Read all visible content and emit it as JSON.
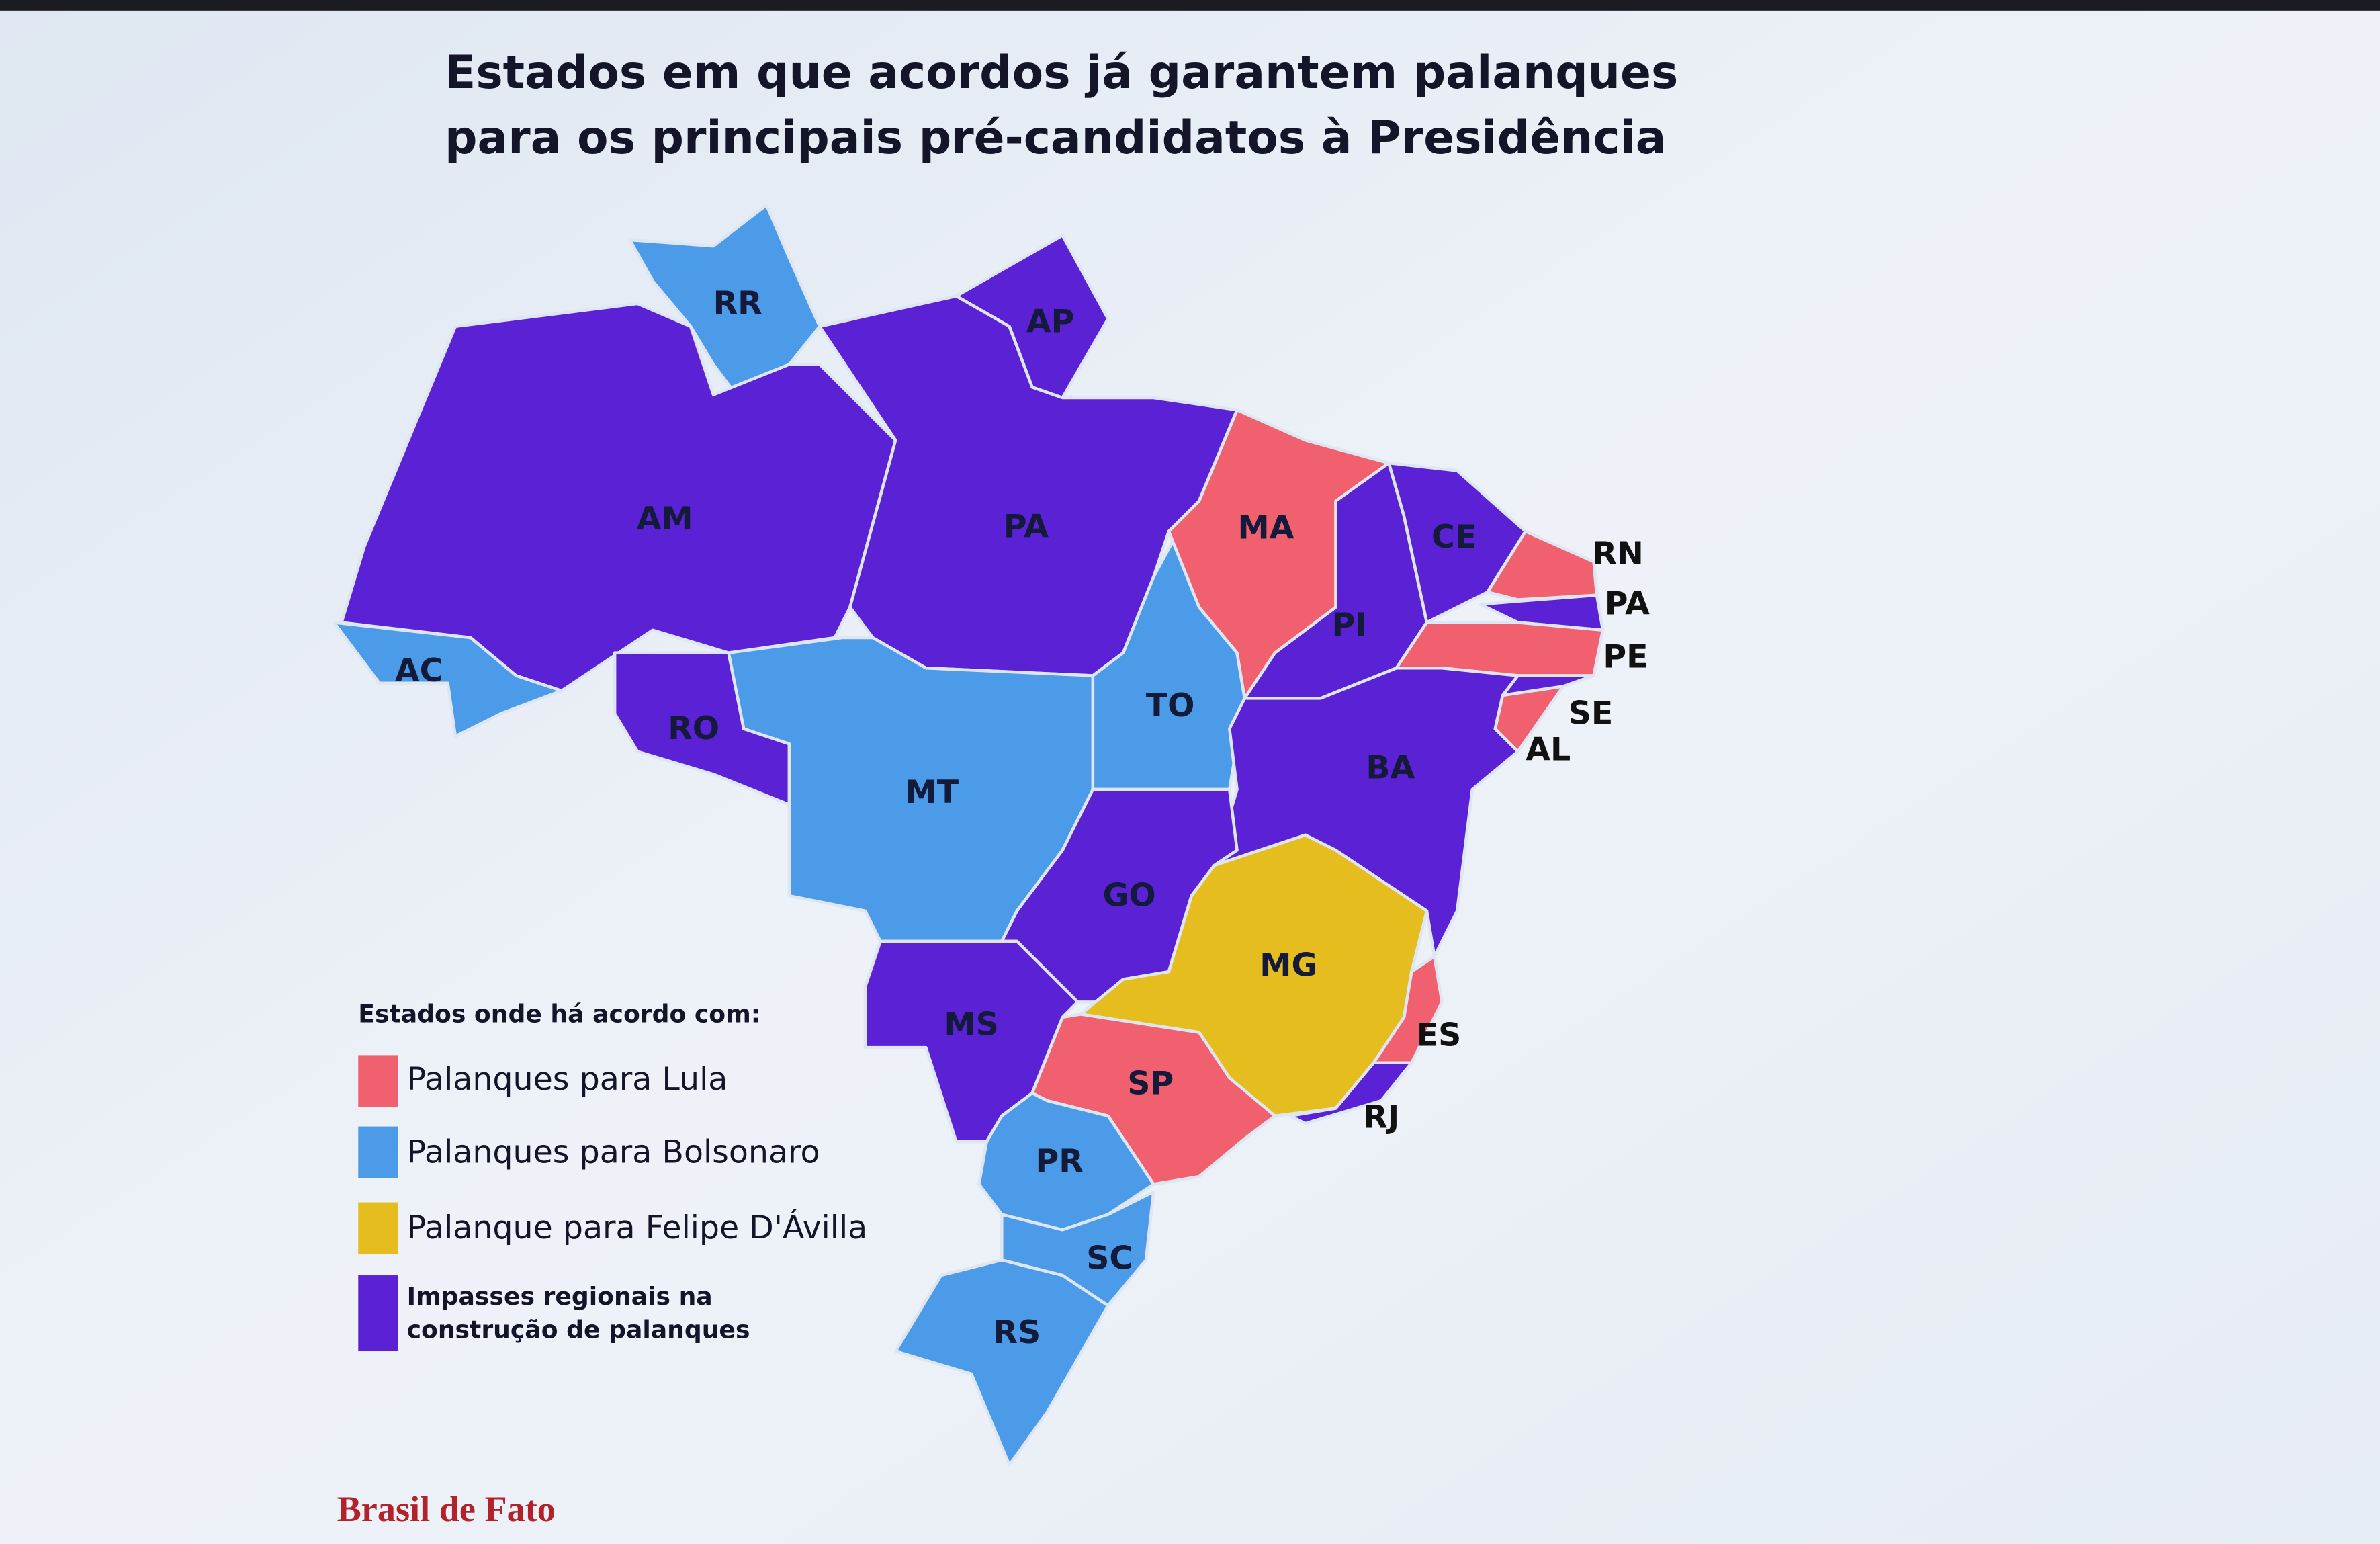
{
  "title": [
    "Estados em que acordos já garantem palanques",
    "para os principais pré-candidatos à Presidência"
  ],
  "legend": {
    "heading": "Estados onde há acordo com:",
    "items": [
      {
        "label": "Palanques para Lula",
        "color": "#f0606e"
      },
      {
        "label": "Palanques para Bolsonaro",
        "color": "#4b9be8"
      },
      {
        "label": "Palanque para Felipe D'Ávilla",
        "color": "#e6bd1e"
      },
      {
        "label": [
          "Impasses regionais na",
          "construção de palanques"
        ],
        "color": "#5a22d4"
      }
    ]
  },
  "states": [
    {
      "label": "RR",
      "color": "#4b9be8"
    },
    {
      "label": "AP",
      "color": "#5a22d4"
    },
    {
      "label": "AM",
      "color": "#5a22d4"
    },
    {
      "label": "AC",
      "color": "#4b9be8"
    },
    {
      "label": "RO",
      "color": "#5a22d4"
    },
    {
      "label": "PA",
      "color": "#5a22d4"
    },
    {
      "label": "MT",
      "color": "#4b9be8"
    },
    {
      "label": "TO",
      "color": "#4b9be8"
    },
    {
      "label": "MA",
      "color": "#f0606e"
    },
    {
      "label": "PI",
      "color": "#5a22d4"
    },
    {
      "label": "CE",
      "color": "#5a22d4"
    },
    {
      "label": "RN",
      "color": "#f0606e"
    },
    {
      "label": "PA",
      "color": "#5a22d4"
    },
    {
      "label": "PE",
      "color": "#f0606e"
    },
    {
      "label": "AL",
      "color": "#f0606e"
    },
    {
      "label": "SE",
      "color": "#5a22d4"
    },
    {
      "label": "BA",
      "color": "#5a22d4"
    },
    {
      "label": "GO",
      "color": "#5a22d4"
    },
    {
      "label": "MG",
      "color": "#e6bd1e"
    },
    {
      "label": "ES",
      "color": "#f0606e"
    },
    {
      "label": "RJ",
      "color": "#5a22d4"
    },
    {
      "label": "SP",
      "color": "#f0606e"
    },
    {
      "label": "MS",
      "color": "#5a22d4"
    },
    {
      "label": "PR",
      "color": "#4b9be8"
    },
    {
      "label": "SC",
      "color": "#4b9be8"
    },
    {
      "label": "RS",
      "color": "#4b9be8"
    }
  ],
  "source": "Brasil de Fato"
}
